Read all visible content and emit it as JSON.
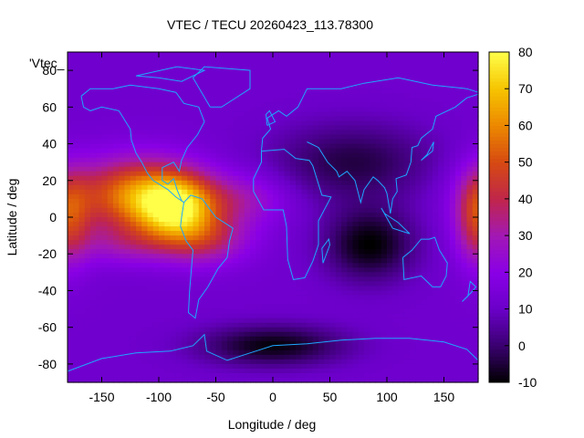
{
  "chart_data": {
    "type": "heatmap",
    "title": "VTEC / TECU 20260423_113.78300",
    "xlabel": "Longitude / deg",
    "ylabel": "Latitude / deg",
    "legend_key": "'Vtec_",
    "xlim": [
      -180,
      180
    ],
    "ylim": [
      -90,
      90
    ],
    "x_ticks": [
      -150,
      -100,
      -50,
      0,
      50,
      100,
      150
    ],
    "y_ticks": [
      -80,
      -60,
      -40,
      -20,
      0,
      20,
      40,
      60,
      80
    ],
    "colorbar": {
      "min": -10,
      "max": 80,
      "ticks": [
        -10,
        0,
        10,
        20,
        30,
        40,
        50,
        60,
        70,
        80
      ]
    },
    "colormap": [
      "#000000",
      "#3a0070",
      "#6a00c8",
      "#8a00e6",
      "#a218b4",
      "#c0264a",
      "#d64a12",
      "#ec8800",
      "#f6c400",
      "#ffff4a"
    ],
    "grid": false,
    "legend": "top-left",
    "features": [
      {
        "lon": -120,
        "lat": 12,
        "sigma_lon": 40,
        "sigma_lat": 14,
        "value": 57
      },
      {
        "lon": -85,
        "lat": 5,
        "sigma_lon": 24,
        "sigma_lat": 12,
        "value": 60
      },
      {
        "lon": -60,
        "lat": -12,
        "sigma_lon": 28,
        "sigma_lat": 10,
        "value": 35
      },
      {
        "lon": -25,
        "lat": 10,
        "sigma_lon": 28,
        "sigma_lat": 10,
        "value": 27
      },
      {
        "lon": -130,
        "lat": -15,
        "sigma_lon": 30,
        "sigma_lat": 8,
        "value": 25
      },
      {
        "lon": 180,
        "lat": 0,
        "sigma_lon": 14,
        "sigma_lat": 18,
        "value": 42
      },
      {
        "lon": 85,
        "lat": -15,
        "sigma_lon": 28,
        "sigma_lat": 14,
        "value": -10
      },
      {
        "lon": 0,
        "lat": -70,
        "sigma_lon": 45,
        "sigma_lat": 8,
        "value": -9
      },
      {
        "lon": 70,
        "lat": 30,
        "sigma_lon": 50,
        "sigma_lat": 15,
        "value": -4
      }
    ]
  }
}
